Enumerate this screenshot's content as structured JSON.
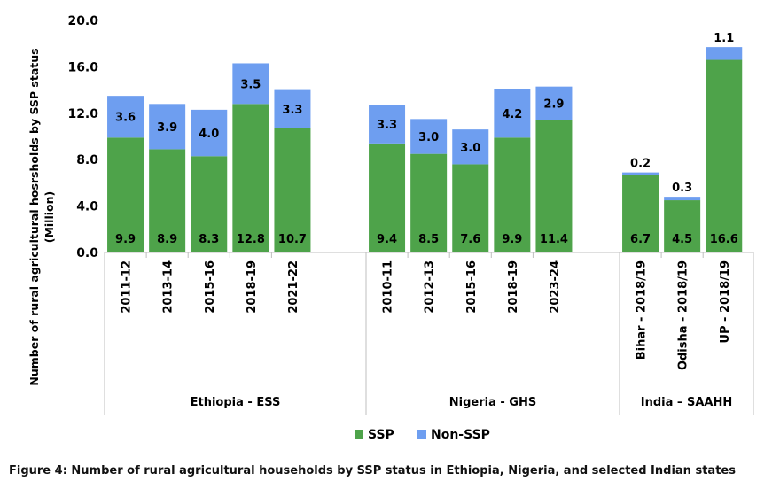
{
  "caption": "Figure 4: Number of rural agricultural households by SSP status in Ethiopia, Nigeria, and selected Indian states",
  "chart_data": {
    "type": "bar",
    "stacked": true,
    "ylabel_lines": [
      "Number of rural agricultural hosrsholds by SSP status",
      "(Million)"
    ],
    "ylim": [
      0,
      20
    ],
    "yticks": [
      "0.0",
      "4.0",
      "8.0",
      "12.0",
      "16.0",
      "20.0"
    ],
    "grid": false,
    "legend_position": "bottom",
    "colors": {
      "SSP": "#4ea34a",
      "Non-SSP": "#6e9ef0"
    },
    "groups": [
      {
        "name": "Ethiopia - ESS",
        "categories": [
          "2011-12",
          "2013-14",
          "2015-16",
          "2018-19",
          "2021-22"
        ],
        "SSP": [
          9.9,
          8.9,
          8.3,
          12.8,
          10.7
        ],
        "Non-SSP": [
          3.6,
          3.9,
          4.0,
          3.5,
          3.3
        ]
      },
      {
        "name": "Nigeria - GHS",
        "categories": [
          "2010-11",
          "2012-13",
          "2015-16",
          "2018-19",
          "2023-24"
        ],
        "SSP": [
          9.4,
          8.5,
          7.6,
          9.9,
          11.4
        ],
        "Non-SSP": [
          3.3,
          3.0,
          3.0,
          4.2,
          2.9
        ]
      },
      {
        "name": "India – SAAHH",
        "categories": [
          "Bihar - 2018/19",
          "Odisha - 2018/19",
          "UP - 2018/19"
        ],
        "SSP": [
          6.7,
          4.5,
          16.6
        ],
        "Non-SSP": [
          0.2,
          0.3,
          1.1
        ]
      }
    ],
    "series": [
      {
        "name": "SSP"
      },
      {
        "name": "Non-SSP"
      }
    ]
  }
}
